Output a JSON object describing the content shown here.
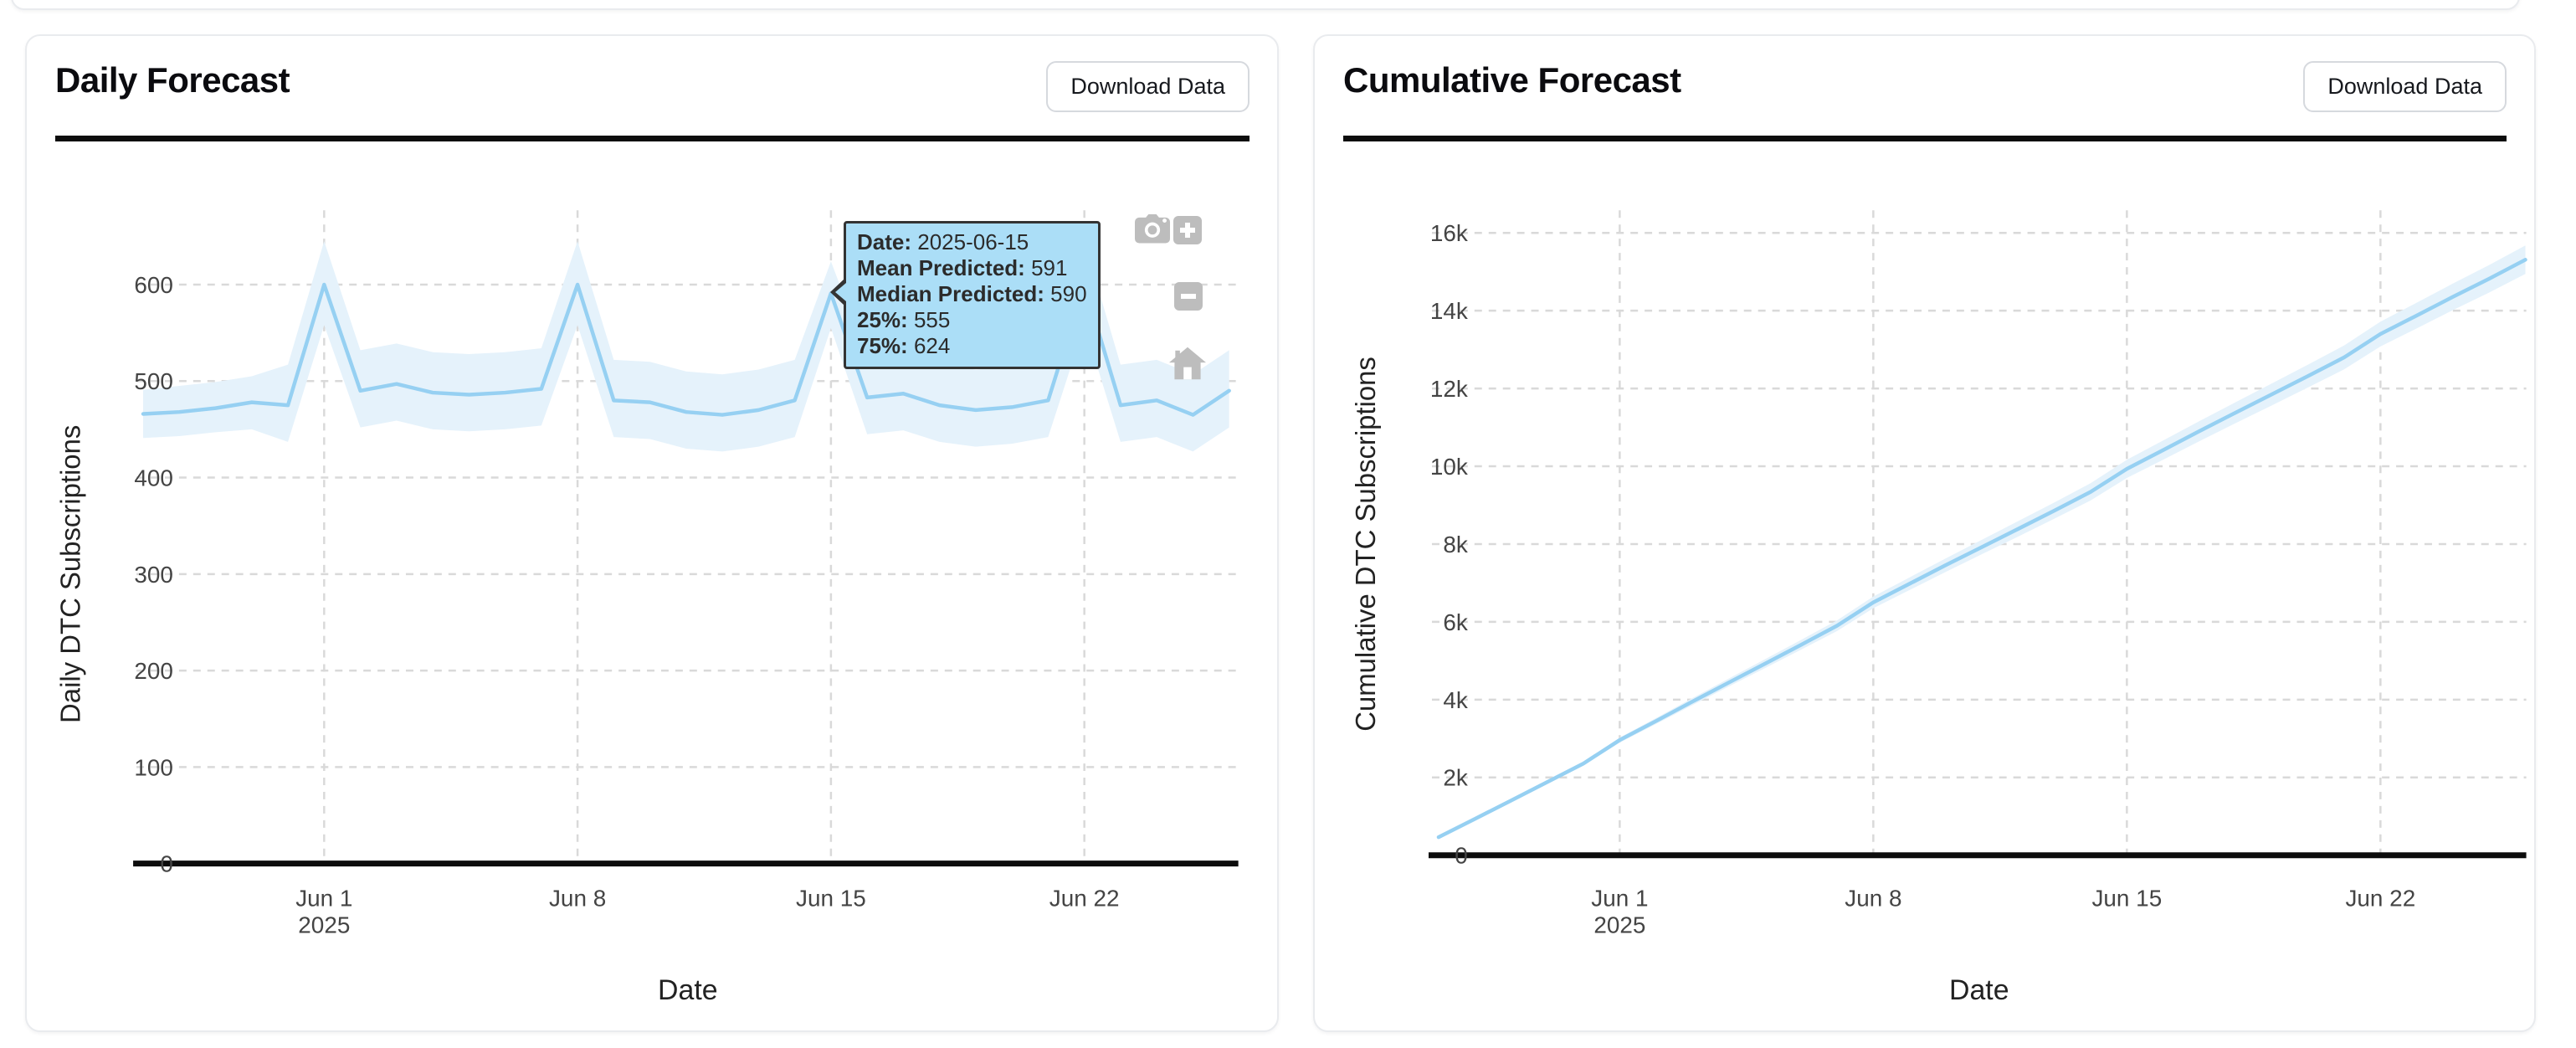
{
  "cards": [
    {
      "title": "Daily Forecast",
      "button_label": "Download Data"
    },
    {
      "title": "Cumulative Forecast",
      "button_label": "Download Data"
    }
  ],
  "tooltip": {
    "rows": [
      {
        "label": "Date:",
        "value": "2025-06-15"
      },
      {
        "label": "Mean Predicted:",
        "value": "591"
      },
      {
        "label": "Median Predicted:",
        "value": "590"
      },
      {
        "label": "25%:",
        "value": "555"
      },
      {
        "label": "75%:",
        "value": "624"
      }
    ]
  },
  "modebar": {
    "icons": [
      "camera-icon",
      "zoom-in-icon",
      "zoom-out-icon",
      "home-icon"
    ]
  },
  "colors": {
    "line": "#96d0f2",
    "band": "#e5f2fb",
    "grid": "#d9d9d9",
    "axis_line": "#0d0d0d",
    "tick_text": "#444444",
    "axis_title_text": "#222222",
    "tooltip_bg": "#abdef7",
    "tooltip_border": "#333333",
    "icon_gray": "#bdbdbd",
    "card_border": "#e9ebee"
  },
  "chart_data": [
    {
      "type": "line",
      "title": "Daily Forecast",
      "xlabel": "Date",
      "ylabel": "Daily DTC Subscriptions",
      "ylim": [
        0,
        650
      ],
      "grid": true,
      "band": "interquartile (25%-75%)",
      "x": [
        "2025-05-27",
        "2025-05-28",
        "2025-05-29",
        "2025-05-30",
        "2025-05-31",
        "2025-06-01",
        "2025-06-02",
        "2025-06-03",
        "2025-06-04",
        "2025-06-05",
        "2025-06-06",
        "2025-06-07",
        "2025-06-08",
        "2025-06-09",
        "2025-06-10",
        "2025-06-11",
        "2025-06-12",
        "2025-06-13",
        "2025-06-14",
        "2025-06-15",
        "2025-06-16",
        "2025-06-17",
        "2025-06-18",
        "2025-06-19",
        "2025-06-20",
        "2025-06-21",
        "2025-06-22",
        "2025-06-23",
        "2025-06-24",
        "2025-06-25",
        "2025-06-26"
      ],
      "series": [
        {
          "name": "Mean Predicted",
          "values": [
            466,
            468,
            472,
            478,
            475,
            600,
            490,
            497,
            488,
            486,
            488,
            492,
            600,
            480,
            478,
            468,
            465,
            470,
            480,
            591,
            483,
            487,
            475,
            470,
            473,
            480,
            600,
            475,
            480,
            465,
            490
          ]
        },
        {
          "name": "25%",
          "values": [
            441,
            443,
            447,
            450,
            437,
            558,
            452,
            459,
            450,
            448,
            450,
            454,
            558,
            442,
            440,
            430,
            427,
            432,
            442,
            555,
            445,
            449,
            437,
            432,
            435,
            442,
            558,
            437,
            442,
            427,
            452
          ]
        },
        {
          "name": "75%",
          "values": [
            491,
            495,
            499,
            505,
            517,
            645,
            532,
            539,
            530,
            528,
            530,
            534,
            645,
            522,
            520,
            510,
            507,
            512,
            522,
            624,
            525,
            529,
            517,
            512,
            515,
            522,
            645,
            517,
            522,
            507,
            532
          ]
        }
      ],
      "yticks": [
        {
          "v": 0,
          "label": "0"
        },
        {
          "v": 100,
          "label": "100"
        },
        {
          "v": 200,
          "label": "200"
        },
        {
          "v": 300,
          "label": "300"
        },
        {
          "v": 400,
          "label": "400"
        },
        {
          "v": 500,
          "label": "500"
        },
        {
          "v": 600,
          "label": "600"
        }
      ],
      "xticks": [
        {
          "i": 5,
          "label": "Jun 1",
          "sub": "2025"
        },
        {
          "i": 12,
          "label": "Jun 8"
        },
        {
          "i": 19,
          "label": "Jun 15"
        },
        {
          "i": 26,
          "label": "Jun 22"
        }
      ]
    },
    {
      "type": "line",
      "title": "Cumulative Forecast",
      "xlabel": "Date",
      "ylabel": "Cumulative DTC Subscriptions",
      "ylim": [
        0,
        16000
      ],
      "grid": true,
      "band": "interquartile (25%-75%)",
      "x": [
        "2025-05-27",
        "2025-05-28",
        "2025-05-29",
        "2025-05-30",
        "2025-05-31",
        "2025-06-01",
        "2025-06-02",
        "2025-06-03",
        "2025-06-04",
        "2025-06-05",
        "2025-06-06",
        "2025-06-07",
        "2025-06-08",
        "2025-06-09",
        "2025-06-10",
        "2025-06-11",
        "2025-06-12",
        "2025-06-13",
        "2025-06-14",
        "2025-06-15",
        "2025-06-16",
        "2025-06-17",
        "2025-06-18",
        "2025-06-19",
        "2025-06-20",
        "2025-06-21",
        "2025-06-22",
        "2025-06-23",
        "2025-06-24",
        "2025-06-25",
        "2025-06-26"
      ],
      "series": [
        {
          "name": "Mean Predicted",
          "values": [
            466,
            934,
            1406,
            1884,
            2359,
            2959,
            3449,
            3946,
            4434,
            4920,
            5408,
            5900,
            6500,
            6980,
            7458,
            7926,
            8391,
            8861,
            9341,
            9932,
            10415,
            10902,
            11377,
            11847,
            12320,
            12800,
            13400,
            13875,
            14355,
            14820,
            15310
          ]
        },
        {
          "name": "25%",
          "values": [
            460,
            916,
            1376,
            1842,
            2305,
            2893,
            3371,
            3856,
            4332,
            4806,
            5282,
            5762,
            6350,
            6818,
            7284,
            7740,
            8193,
            8651,
            9119,
            9698,
            10169,
            10644,
            11107,
            11565,
            12026,
            12494,
            13082,
            13545,
            14013,
            14466,
            14944
          ]
        },
        {
          "name": "75%",
          "values": [
            472,
            952,
            1436,
            1926,
            2413,
            3025,
            3527,
            4036,
            4536,
            5034,
            5534,
            6038,
            6650,
            7142,
            7632,
            8112,
            8589,
            9071,
            9563,
            10166,
            10661,
            11160,
            11647,
            12129,
            12614,
            13106,
            13718,
            14205,
            14697,
            15174,
            15676
          ]
        }
      ],
      "yticks": [
        {
          "v": 0,
          "label": "0"
        },
        {
          "v": 2000,
          "label": "2k"
        },
        {
          "v": 4000,
          "label": "4k"
        },
        {
          "v": 6000,
          "label": "6k"
        },
        {
          "v": 8000,
          "label": "8k"
        },
        {
          "v": 10000,
          "label": "10k"
        },
        {
          "v": 12000,
          "label": "12k"
        },
        {
          "v": 14000,
          "label": "14k"
        },
        {
          "v": 16000,
          "label": "16k"
        }
      ],
      "xticks": [
        {
          "i": 5,
          "label": "Jun 1",
          "sub": "2025"
        },
        {
          "i": 12,
          "label": "Jun 8"
        },
        {
          "i": 19,
          "label": "Jun 15"
        },
        {
          "i": 26,
          "label": "Jun 22"
        }
      ]
    }
  ]
}
